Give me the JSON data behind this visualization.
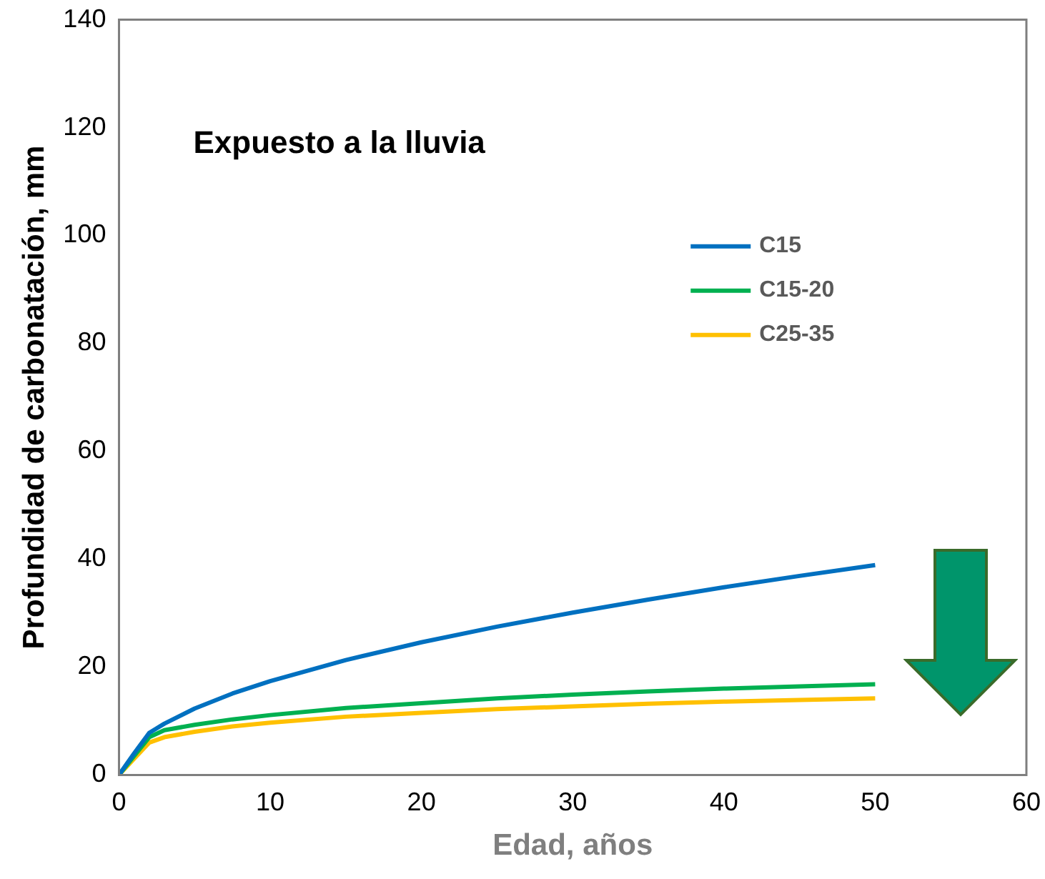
{
  "chart_data": {
    "type": "line",
    "annotations": [
      "Expuesto a la lluvia"
    ],
    "xlabel": "Edad, años",
    "ylabel": "Profundidad de carbonatación, mm",
    "x": [
      0,
      1,
      2,
      3,
      5,
      7.5,
      10,
      15,
      20,
      25,
      30,
      35,
      40,
      45,
      50
    ],
    "series": [
      {
        "name": "C15",
        "color": "#0070c0",
        "values": [
          0,
          4,
          7.8,
          9.5,
          12.3,
          15.1,
          17.4,
          21.3,
          24.6,
          27.5,
          30.1,
          32.5,
          34.8,
          36.9,
          38.9
        ]
      },
      {
        "name": "C15-20",
        "color": "#00b050",
        "values": [
          0,
          3.5,
          7,
          8.3,
          9.3,
          10.3,
          11.1,
          12.4,
          13.3,
          14.2,
          14.9,
          15.5,
          16,
          16.4,
          16.8
        ]
      },
      {
        "name": "C25-35",
        "color": "#ffc000",
        "values": [
          0,
          3,
          6,
          7,
          8,
          9,
          9.7,
          10.8,
          11.5,
          12.2,
          12.7,
          13.2,
          13.6,
          13.9,
          14.2
        ]
      }
    ],
    "xlim": [
      0,
      60
    ],
    "xticks": [
      0,
      10,
      20,
      30,
      40,
      50,
      60
    ],
    "ylim": [
      0,
      140
    ],
    "yticks": [
      0,
      20,
      40,
      60,
      80,
      100,
      120,
      140
    ],
    "grid": false,
    "legend": "right",
    "marker": "none",
    "line_style": "solid"
  }
}
